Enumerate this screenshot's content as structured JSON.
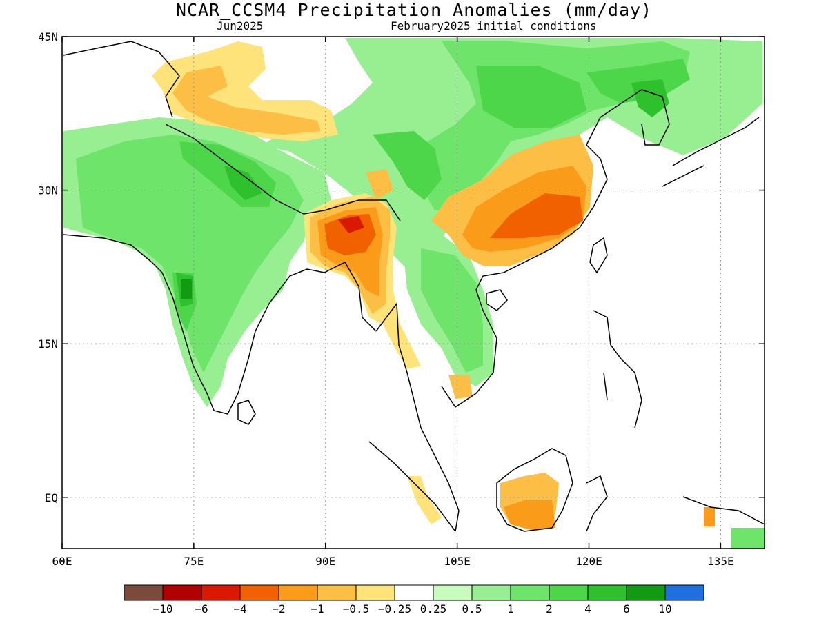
{
  "title": "NCAR_CCSM4 Precipitation Anomalies (mm/day)",
  "subtitle_left": "Jun2025",
  "subtitle_right": "February2025 initial conditions",
  "map": {
    "lon_range": [
      60,
      140
    ],
    "lat_range": [
      -5,
      45
    ],
    "lat_ticks": [
      {
        "value": 45,
        "label": "45N"
      },
      {
        "value": 30,
        "label": "30N"
      },
      {
        "value": 15,
        "label": "15N"
      },
      {
        "value": 0,
        "label": "EQ"
      }
    ],
    "lon_ticks": [
      {
        "value": 60,
        "label": "60E"
      },
      {
        "value": 75,
        "label": "75E"
      },
      {
        "value": 90,
        "label": "90E"
      },
      {
        "value": 105,
        "label": "105E"
      },
      {
        "value": 120,
        "label": "120E"
      },
      {
        "value": 135,
        "label": "135E"
      }
    ],
    "grid": true
  },
  "colorbar": {
    "colors": [
      "#7b4a3a",
      "#b10000",
      "#d91a00",
      "#f26100",
      "#fb9b1a",
      "#fcbe45",
      "#fde37a",
      "#ffffff",
      "#c8fcbe",
      "#97ef92",
      "#6fe46a",
      "#4ed64a",
      "#2fc02e",
      "#129a12",
      "#1f6fe0"
    ],
    "labels": [
      "−10",
      "−6",
      "−4",
      "−2",
      "−1",
      "−0.5",
      "−0.25",
      "0.25",
      "0.5",
      "1",
      "2",
      "4",
      "6",
      "10"
    ]
  }
}
